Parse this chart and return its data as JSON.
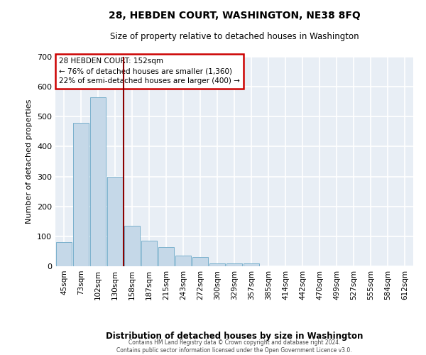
{
  "title_line1": "28, HEBDEN COURT, WASHINGTON, NE38 8FQ",
  "title_line2": "Size of property relative to detached houses in Washington",
  "xlabel": "Distribution of detached houses by size in Washington",
  "ylabel": "Number of detached properties",
  "footer_line1": "Contains HM Land Registry data © Crown copyright and database right 2024.",
  "footer_line2": "Contains public sector information licensed under the Open Government Licence v3.0.",
  "annotation_line1": "28 HEBDEN COURT: 152sqm",
  "annotation_line2": "← 76% of detached houses are smaller (1,360)",
  "annotation_line3": "22% of semi-detached houses are larger (400) →",
  "categories": [
    "45sqm",
    "73sqm",
    "102sqm",
    "130sqm",
    "158sqm",
    "187sqm",
    "215sqm",
    "243sqm",
    "272sqm",
    "300sqm",
    "329sqm",
    "357sqm",
    "385sqm",
    "414sqm",
    "442sqm",
    "470sqm",
    "499sqm",
    "527sqm",
    "555sqm",
    "584sqm",
    "612sqm"
  ],
  "values": [
    80,
    480,
    565,
    300,
    135,
    85,
    65,
    35,
    30,
    10,
    10,
    10,
    0,
    0,
    0,
    0,
    0,
    0,
    0,
    0,
    0
  ],
  "bar_color": "#c5d8e8",
  "bar_edge_color": "#7ab0cc",
  "vline_color": "#8b0000",
  "vline_pos": 3.5,
  "annotation_box_edge": "#cc0000",
  "background_color": "#e8eef5",
  "grid_color": "#ffffff",
  "ylim": [
    0,
    700
  ],
  "yticks": [
    0,
    100,
    200,
    300,
    400,
    500,
    600,
    700
  ]
}
